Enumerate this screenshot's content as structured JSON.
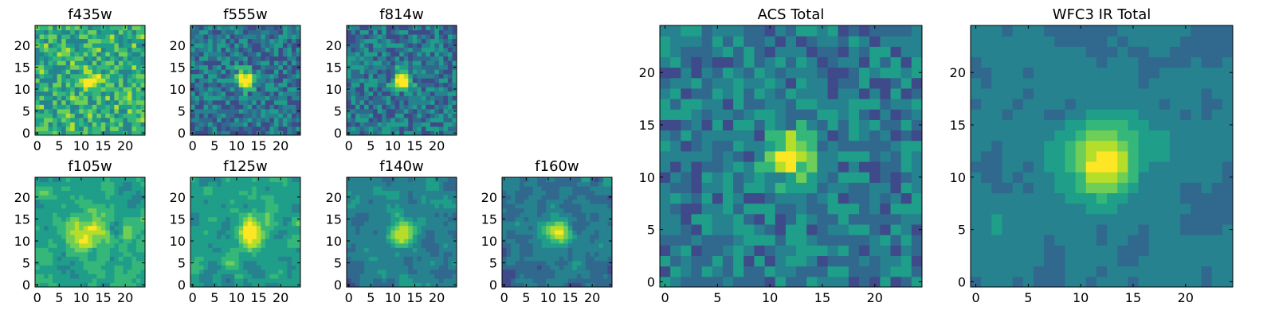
{
  "figure": {
    "panels_small": [
      "f435w",
      "f555w",
      "f814w",
      "f105w",
      "f125w",
      "f140w",
      "f160w"
    ],
    "panels_large": [
      "ACS Total",
      "WFC3 IR Total"
    ]
  },
  "colormap": [
    "#440154",
    "#482878",
    "#3e4a89",
    "#31688e",
    "#26828e",
    "#1f9e89",
    "#35b779",
    "#6ece58",
    "#b5de2b",
    "#fde725"
  ],
  "chart_data": [
    {
      "type": "heatmap",
      "title": "f435w",
      "grid_size": [
        25,
        25
      ],
      "source_center": [
        12,
        12
      ],
      "source_width": 1.6,
      "source_peak": 0.35,
      "mean_level": 0.62,
      "noise": 0.2,
      "smooth": 0,
      "seed": 11,
      "xticks": [
        0,
        5,
        10,
        15,
        20
      ],
      "yticks": [
        0,
        5,
        10,
        15,
        20
      ]
    },
    {
      "type": "heatmap",
      "title": "f555w",
      "grid_size": [
        25,
        25
      ],
      "source_center": [
        12,
        12
      ],
      "source_width": 1.4,
      "source_peak": 0.75,
      "mean_level": 0.4,
      "noise": 0.2,
      "smooth": 0,
      "seed": 22,
      "xticks": [
        0,
        5,
        10,
        15,
        20
      ],
      "yticks": [
        0,
        5,
        10,
        15,
        20
      ]
    },
    {
      "type": "heatmap",
      "title": "f814w",
      "grid_size": [
        25,
        25
      ],
      "source_center": [
        12,
        12
      ],
      "source_width": 1.3,
      "source_peak": 0.8,
      "mean_level": 0.4,
      "noise": 0.2,
      "smooth": 0,
      "seed": 33,
      "xticks": [
        0,
        5,
        10,
        15,
        20
      ],
      "yticks": [
        0,
        5,
        10,
        15,
        20
      ]
    },
    {
      "type": "heatmap",
      "title": "f105w",
      "grid_size": [
        25,
        25
      ],
      "source_center": [
        12,
        12
      ],
      "source_width": 3,
      "source_peak": 0.3,
      "mean_level": 0.58,
      "noise": 0.28,
      "smooth": 1,
      "seed": 44,
      "xticks": [
        0,
        5,
        10,
        15,
        20
      ],
      "yticks": [
        0,
        5,
        10,
        15,
        20
      ]
    },
    {
      "type": "heatmap",
      "title": "f125w",
      "grid_size": [
        25,
        25
      ],
      "source_center": [
        13,
        12
      ],
      "source_width": 2.5,
      "source_peak": 0.4,
      "mean_level": 0.55,
      "noise": 0.28,
      "smooth": 1,
      "seed": 55,
      "xticks": [
        0,
        5,
        10,
        15,
        20
      ],
      "yticks": [
        0,
        5,
        10,
        15,
        20
      ]
    },
    {
      "type": "heatmap",
      "title": "f140w",
      "grid_size": [
        25,
        25
      ],
      "source_center": [
        12,
        12
      ],
      "source_width": 1.8,
      "source_peak": 0.55,
      "mean_level": 0.45,
      "noise": 0.22,
      "smooth": 1,
      "seed": 66,
      "xticks": [
        0,
        5,
        10,
        15,
        20
      ],
      "yticks": [
        0,
        5,
        10,
        15,
        20
      ]
    },
    {
      "type": "heatmap",
      "title": "f160w",
      "grid_size": [
        25,
        25
      ],
      "source_center": [
        12,
        12
      ],
      "source_width": 2,
      "source_peak": 0.6,
      "mean_level": 0.4,
      "noise": 0.25,
      "smooth": 1,
      "seed": 77,
      "xticks": [
        0,
        5,
        10,
        15,
        20
      ],
      "yticks": [
        0,
        5,
        10,
        15,
        20
      ]
    },
    {
      "type": "heatmap",
      "title": "ACS Total",
      "grid_size": [
        25,
        25
      ],
      "source_center": [
        12,
        12
      ],
      "source_width": 1.6,
      "source_peak": 0.6,
      "mean_level": 0.42,
      "noise": 0.17,
      "smooth": 0,
      "seed": 88,
      "xticks": [
        0,
        5,
        10,
        15,
        20
      ],
      "yticks": [
        0,
        5,
        10,
        15,
        20
      ]
    },
    {
      "type": "heatmap",
      "title": "WFC3 IR Total",
      "grid_size": [
        25,
        25
      ],
      "source_center": [
        12,
        12
      ],
      "source_width": 2.5,
      "source_peak": 0.55,
      "mean_level": 0.42,
      "noise": 0.16,
      "smooth": 1,
      "seed": 99,
      "xticks": [
        0,
        5,
        10,
        15,
        20
      ],
      "yticks": [
        0,
        5,
        10,
        15,
        20
      ]
    }
  ]
}
